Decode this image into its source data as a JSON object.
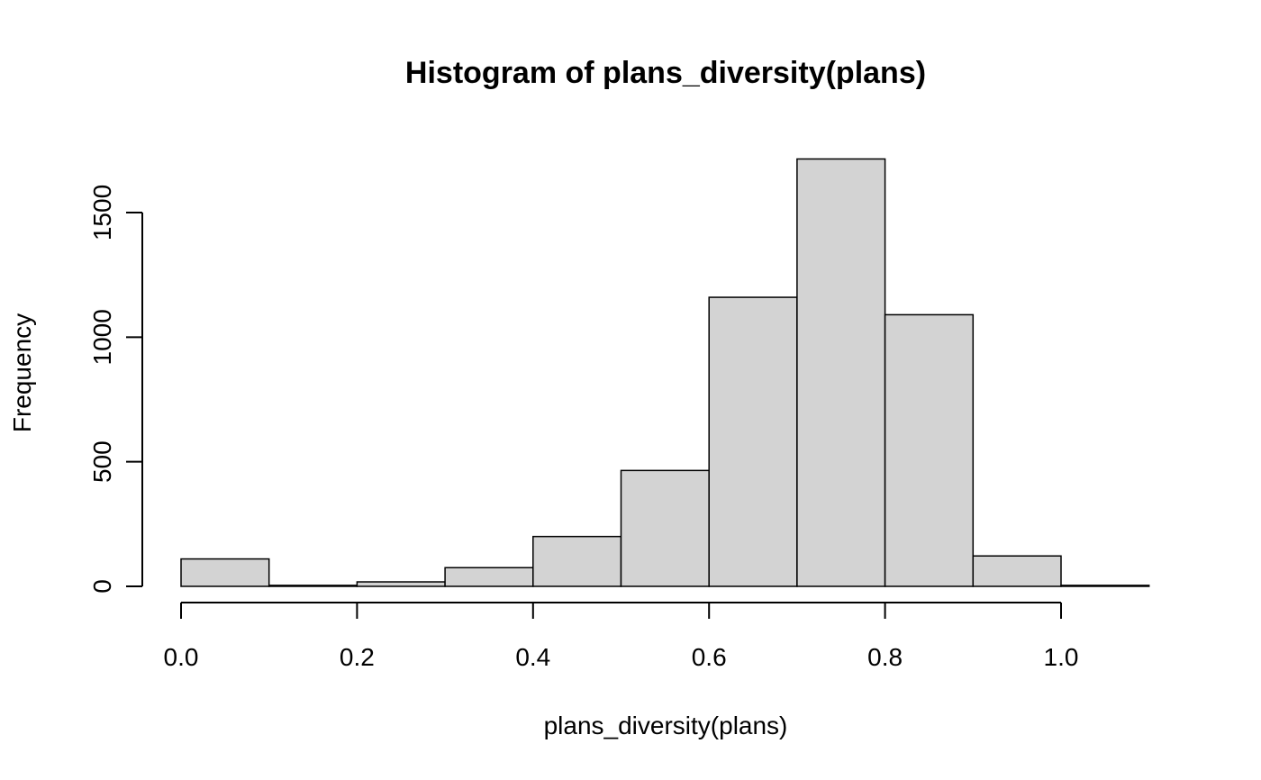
{
  "chart_data": {
    "type": "bar",
    "title": "Histogram of plans_diversity(plans)",
    "xlabel": "plans_diversity(plans)",
    "ylabel": "Frequency",
    "bin_edges": [
      0.0,
      0.1,
      0.2,
      0.3,
      0.4,
      0.5,
      0.6,
      0.7,
      0.8,
      0.9,
      1.0,
      1.1
    ],
    "values": [
      110,
      4,
      18,
      75,
      200,
      465,
      1160,
      1715,
      1090,
      122,
      4
    ],
    "xlim": [
      0.0,
      1.1
    ],
    "ylim": [
      0,
      1750
    ],
    "x_ticks": [
      0.0,
      0.2,
      0.4,
      0.6,
      0.8,
      1.0
    ],
    "x_tick_labels": [
      "0.0",
      "0.2",
      "0.4",
      "0.6",
      "0.8",
      "1.0"
    ],
    "y_ticks": [
      0,
      500,
      1000,
      1500
    ],
    "y_tick_labels": [
      "0",
      "500",
      "1000",
      "1500"
    ],
    "bar_fill": "#d3d3d3",
    "bar_stroke": "#000000",
    "grid": false,
    "legend": "none"
  }
}
